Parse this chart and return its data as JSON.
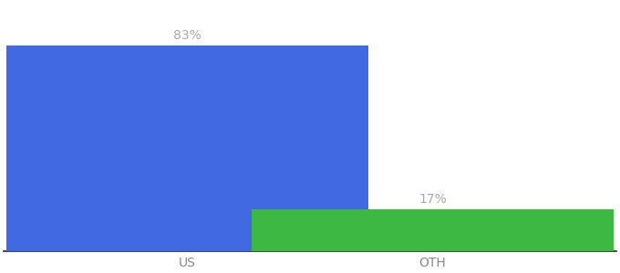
{
  "categories": [
    "US",
    "OTH"
  ],
  "values": [
    83,
    17
  ],
  "bar_colors": [
    "#4169e1",
    "#3cb843"
  ],
  "labels": [
    "83%",
    "17%"
  ],
  "background_color": "#ffffff",
  "ylim": [
    0,
    100
  ],
  "bar_width": 0.65,
  "label_fontsize": 10,
  "tick_fontsize": 10,
  "label_color": "#aaaaaa",
  "tick_color": "#888888"
}
